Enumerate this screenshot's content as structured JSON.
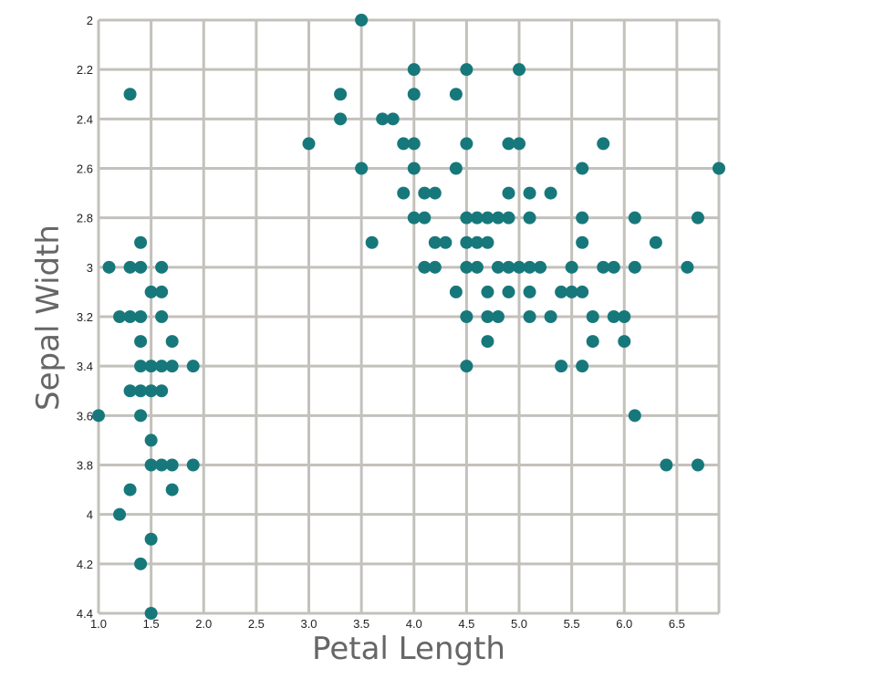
{
  "chart_data": {
    "type": "scatter",
    "xlabel": "Petal Length",
    "ylabel": "Sepal Width",
    "xlim": [
      1.0,
      6.9
    ],
    "ylim": [
      2.0,
      4.4
    ],
    "y_inverted": true,
    "grid": true,
    "x_ticks": [
      "1.0",
      "1.5",
      "2.0",
      "2.5",
      "3.0",
      "3.5",
      "4.0",
      "4.5",
      "5.0",
      "5.5",
      "6.0",
      "6.5"
    ],
    "y_ticks": [
      "2",
      "2.2",
      "2.4",
      "2.6",
      "2.8",
      "3",
      "3.2",
      "3.4",
      "3.6",
      "3.8",
      "4",
      "4.2",
      "4.4"
    ],
    "colors": {
      "point": "#17787b",
      "grid": "#c3c1bb",
      "title": "#666666"
    },
    "points": [
      [
        3.5,
        2.0
      ],
      [
        1.3,
        2.3
      ],
      [
        3.3,
        2.3
      ],
      [
        4.0,
        2.3
      ],
      [
        4.4,
        2.3
      ],
      [
        4.0,
        2.2
      ],
      [
        4.5,
        2.2
      ],
      [
        5.0,
        2.2
      ],
      [
        3.3,
        2.4
      ],
      [
        3.7,
        2.4
      ],
      [
        3.8,
        2.4
      ],
      [
        3.0,
        2.5
      ],
      [
        3.9,
        2.5
      ],
      [
        4.0,
        2.5
      ],
      [
        4.5,
        2.5
      ],
      [
        4.9,
        2.5
      ],
      [
        5.0,
        2.5
      ],
      [
        5.8,
        2.5
      ],
      [
        3.5,
        2.6
      ],
      [
        4.0,
        2.6
      ],
      [
        4.4,
        2.6
      ],
      [
        5.6,
        2.6
      ],
      [
        6.9,
        2.6
      ],
      [
        3.9,
        2.7
      ],
      [
        4.1,
        2.7
      ],
      [
        4.2,
        2.7
      ],
      [
        4.9,
        2.7
      ],
      [
        5.1,
        2.7
      ],
      [
        5.3,
        2.7
      ],
      [
        4.0,
        2.8
      ],
      [
        4.1,
        2.8
      ],
      [
        4.5,
        2.8
      ],
      [
        4.6,
        2.8
      ],
      [
        4.7,
        2.8
      ],
      [
        4.8,
        2.8
      ],
      [
        4.9,
        2.8
      ],
      [
        5.1,
        2.8
      ],
      [
        5.6,
        2.8
      ],
      [
        6.1,
        2.8
      ],
      [
        6.7,
        2.8
      ],
      [
        1.4,
        2.9
      ],
      [
        3.6,
        2.9
      ],
      [
        4.2,
        2.9
      ],
      [
        4.3,
        2.9
      ],
      [
        4.5,
        2.9
      ],
      [
        4.6,
        2.9
      ],
      [
        4.7,
        2.9
      ],
      [
        5.6,
        2.9
      ],
      [
        6.3,
        2.9
      ],
      [
        1.1,
        3.0
      ],
      [
        1.3,
        3.0
      ],
      [
        1.4,
        3.0
      ],
      [
        1.6,
        3.0
      ],
      [
        4.1,
        3.0
      ],
      [
        4.2,
        3.0
      ],
      [
        4.5,
        3.0
      ],
      [
        4.6,
        3.0
      ],
      [
        4.8,
        3.0
      ],
      [
        4.9,
        3.0
      ],
      [
        5.0,
        3.0
      ],
      [
        5.1,
        3.0
      ],
      [
        5.2,
        3.0
      ],
      [
        5.5,
        3.0
      ],
      [
        5.8,
        3.0
      ],
      [
        5.9,
        3.0
      ],
      [
        6.1,
        3.0
      ],
      [
        6.6,
        3.0
      ],
      [
        1.5,
        3.1
      ],
      [
        1.6,
        3.1
      ],
      [
        4.4,
        3.1
      ],
      [
        4.7,
        3.1
      ],
      [
        4.9,
        3.1
      ],
      [
        5.1,
        3.1
      ],
      [
        5.4,
        3.1
      ],
      [
        5.5,
        3.1
      ],
      [
        5.6,
        3.1
      ],
      [
        1.2,
        3.2
      ],
      [
        1.3,
        3.2
      ],
      [
        1.4,
        3.2
      ],
      [
        1.6,
        3.2
      ],
      [
        4.5,
        3.2
      ],
      [
        4.7,
        3.2
      ],
      [
        4.8,
        3.2
      ],
      [
        5.1,
        3.2
      ],
      [
        5.3,
        3.2
      ],
      [
        5.7,
        3.2
      ],
      [
        5.9,
        3.2
      ],
      [
        6.0,
        3.2
      ],
      [
        1.4,
        3.3
      ],
      [
        1.7,
        3.3
      ],
      [
        4.7,
        3.3
      ],
      [
        5.7,
        3.3
      ],
      [
        6.0,
        3.3
      ],
      [
        1.4,
        3.4
      ],
      [
        1.5,
        3.4
      ],
      [
        1.6,
        3.4
      ],
      [
        1.7,
        3.4
      ],
      [
        1.9,
        3.4
      ],
      [
        4.5,
        3.4
      ],
      [
        5.4,
        3.4
      ],
      [
        5.6,
        3.4
      ],
      [
        1.3,
        3.5
      ],
      [
        1.4,
        3.5
      ],
      [
        1.5,
        3.5
      ],
      [
        1.6,
        3.5
      ],
      [
        1.0,
        3.6
      ],
      [
        1.4,
        3.6
      ],
      [
        6.1,
        3.6
      ],
      [
        1.5,
        3.7
      ],
      [
        1.5,
        3.8
      ],
      [
        1.6,
        3.8
      ],
      [
        1.7,
        3.8
      ],
      [
        1.9,
        3.8
      ],
      [
        6.4,
        3.8
      ],
      [
        6.7,
        3.8
      ],
      [
        1.3,
        3.9
      ],
      [
        1.7,
        3.9
      ],
      [
        1.2,
        4.0
      ],
      [
        1.5,
        4.1
      ],
      [
        1.4,
        4.2
      ],
      [
        1.5,
        4.4
      ]
    ]
  }
}
